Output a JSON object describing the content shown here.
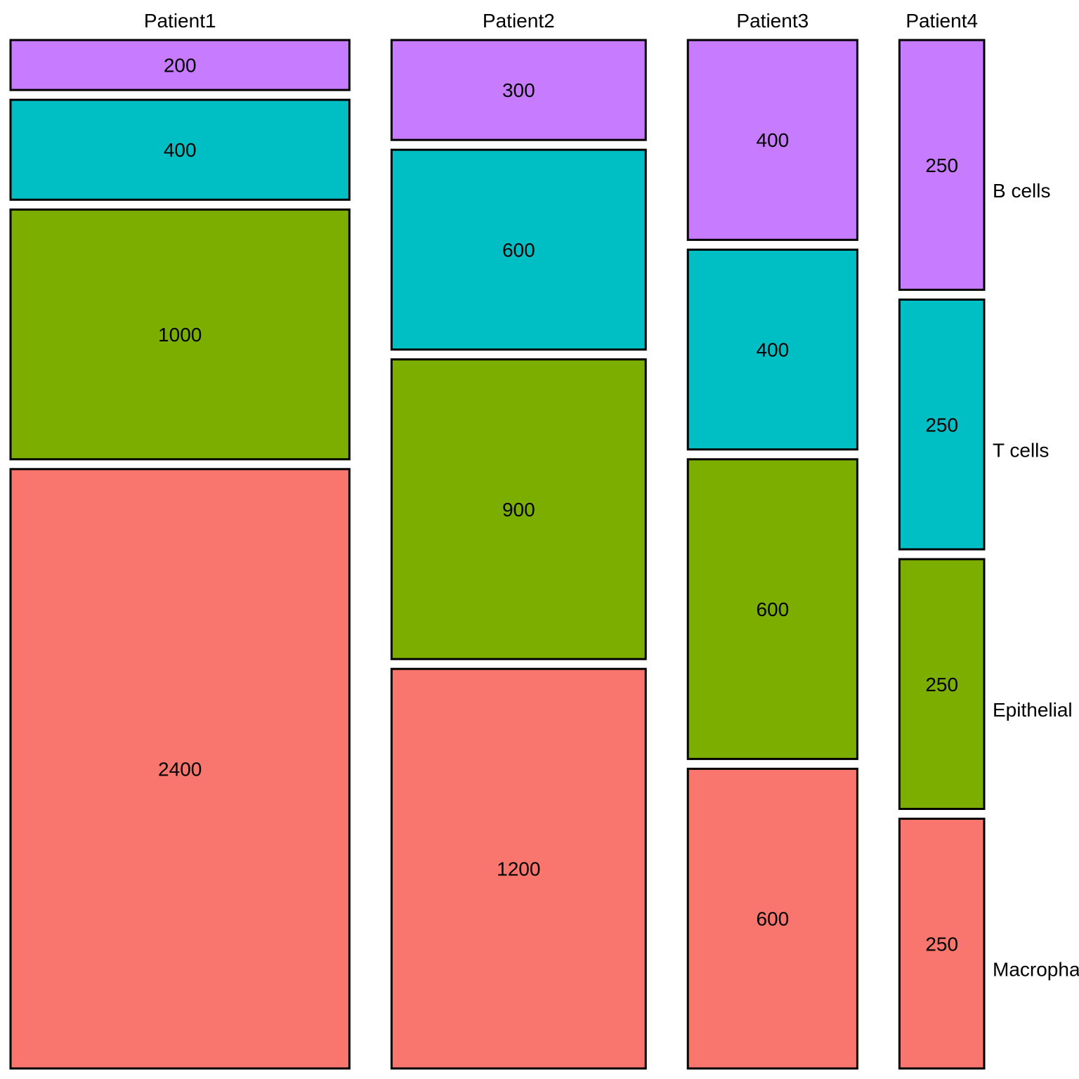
{
  "chart_data": {
    "type": "mosaic",
    "title": "",
    "xlabel": "",
    "ylabel": "",
    "categories": [
      "Patient1",
      "Patient2",
      "Patient3",
      "Patient4"
    ],
    "cell_types": [
      "B cells",
      "T cells",
      "Epithelial",
      "Macrophages"
    ],
    "series": [
      {
        "name": "B cells",
        "color": "#C77CFF",
        "values": [
          200,
          300,
          400,
          250
        ]
      },
      {
        "name": "T cells",
        "color": "#00BFC4",
        "values": [
          400,
          600,
          400,
          250
        ]
      },
      {
        "name": "Epithelial",
        "color": "#7CAE00",
        "values": [
          1000,
          900,
          600,
          250
        ]
      },
      {
        "name": "Macrophages",
        "color": "#F8766D",
        "values": [
          2400,
          1200,
          600,
          250
        ]
      }
    ],
    "right_labels": [
      "B cells",
      "T cells",
      "Epithelial",
      "Macrophages"
    ],
    "grid": false,
    "legend": "none"
  }
}
